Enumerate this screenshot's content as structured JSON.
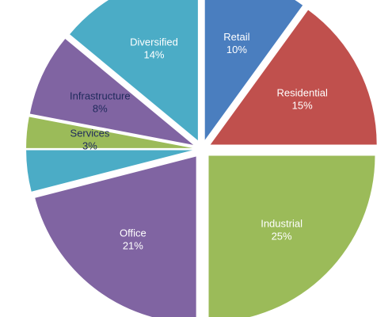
{
  "chart_data": {
    "type": "pie",
    "title": "",
    "exploded": true,
    "start_angle_deg_from_top": 0,
    "direction": "clockwise",
    "slices": [
      {
        "label": "Retail",
        "value": 10,
        "value_label": "10%",
        "color": "#4a7ebf",
        "label_color": "#ffffff"
      },
      {
        "label": "Residential",
        "value": 15,
        "value_label": "15%",
        "color": "#c0504d",
        "label_color": "#ffffff"
      },
      {
        "label": "Industrial",
        "value": 25,
        "value_label": "25%",
        "color": "#9bbb59",
        "label_color": "#ffffff"
      },
      {
        "label": "Office",
        "value": 21,
        "value_label": "21%",
        "color": "#8064a2",
        "label_color": "#ffffff"
      },
      {
        "label": "",
        "value": 4,
        "value_label": "",
        "color": "#4bacc6",
        "label_color": "#ffffff"
      },
      {
        "label": "Services",
        "value": 3,
        "value_label": "3%",
        "color": "#9bbb59",
        "label_color": "#1f2a5c"
      },
      {
        "label": "Infrastructure",
        "value": 8,
        "value_label": "8%",
        "color": "#8064a2",
        "label_color": "#1f2a5c"
      },
      {
        "label": "Diversified",
        "value": 14,
        "value_label": "14%",
        "color": "#4bacc6",
        "label_color": "#ffffff"
      }
    ]
  }
}
